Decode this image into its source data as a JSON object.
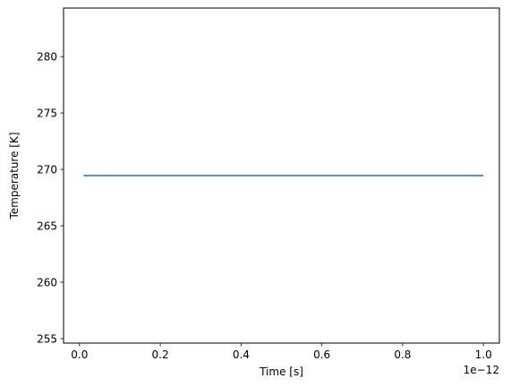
{
  "chart_data": {
    "type": "line",
    "title": "",
    "xlabel": "Time [s]",
    "ylabel": "Temperature [K]",
    "x_offset_label": "1e−12",
    "xlim": [
      -0.0395,
      1.0395
    ],
    "ylim": [
      254.6,
      284.3
    ],
    "xticks": [
      0.0,
      0.2,
      0.4,
      0.6,
      0.8,
      1.0
    ],
    "xtick_labels": [
      "0.0",
      "0.2",
      "0.4",
      "0.6",
      "0.8",
      "1.0"
    ],
    "yticks": [
      255,
      260,
      265,
      270,
      275,
      280
    ],
    "ytick_labels": [
      "255",
      "260",
      "265",
      "270",
      "275",
      "280"
    ],
    "grid": false,
    "series": [
      {
        "color": "#1f77b4",
        "x": [
          0.01,
          1.0
        ],
        "y": [
          269.45,
          269.45
        ]
      }
    ]
  }
}
